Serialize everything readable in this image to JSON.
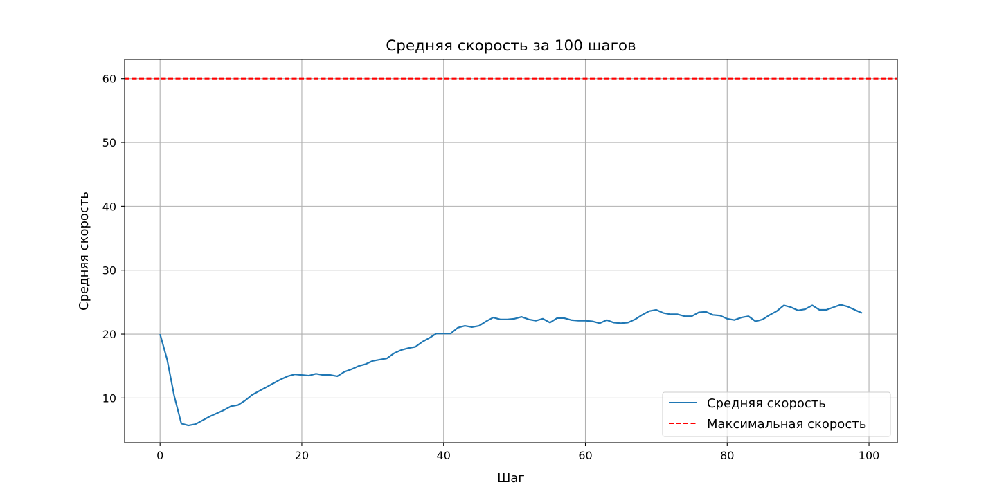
{
  "chart_data": {
    "type": "line",
    "title": "Средняя скорость за 100 шагов",
    "xlabel": "Шаг",
    "ylabel": "Средняя скорость",
    "xlim": [
      -5,
      104
    ],
    "ylim": [
      3,
      63
    ],
    "xticks": [
      0,
      20,
      40,
      60,
      80,
      100
    ],
    "yticks": [
      10,
      20,
      30,
      40,
      50,
      60
    ],
    "grid": true,
    "legend_position": "lower-right",
    "series": [
      {
        "name": "Средняя скорость",
        "color": "#1f77b4",
        "style": "solid",
        "x": [
          0,
          1,
          2,
          3,
          4,
          5,
          6,
          7,
          8,
          9,
          10,
          11,
          12,
          13,
          14,
          15,
          16,
          17,
          18,
          19,
          20,
          21,
          22,
          23,
          24,
          25,
          26,
          27,
          28,
          29,
          30,
          31,
          32,
          33,
          34,
          35,
          36,
          37,
          38,
          39,
          40,
          41,
          42,
          43,
          44,
          45,
          46,
          47,
          48,
          49,
          50,
          51,
          52,
          53,
          54,
          55,
          56,
          57,
          58,
          59,
          60,
          61,
          62,
          63,
          64,
          65,
          66,
          67,
          68,
          69,
          70,
          71,
          72,
          73,
          74,
          75,
          76,
          77,
          78,
          79,
          80,
          81,
          82,
          83,
          84,
          85,
          86,
          87,
          88,
          89,
          90,
          91,
          92,
          93,
          94,
          95,
          96,
          97,
          98,
          99
        ],
        "values": [
          20.0,
          16.0,
          10.3,
          6.0,
          5.7,
          5.9,
          6.5,
          7.1,
          7.6,
          8.1,
          8.7,
          8.9,
          9.6,
          10.5,
          11.1,
          11.7,
          12.3,
          12.9,
          13.4,
          13.7,
          13.6,
          13.5,
          13.8,
          13.6,
          13.6,
          13.4,
          14.1,
          14.5,
          15.0,
          15.3,
          15.8,
          16.0,
          16.2,
          17.0,
          17.5,
          17.8,
          18.0,
          18.8,
          19.4,
          20.1,
          20.1,
          20.1,
          21.0,
          21.3,
          21.1,
          21.3,
          22.0,
          22.6,
          22.3,
          22.3,
          22.4,
          22.7,
          22.3,
          22.1,
          22.4,
          21.8,
          22.5,
          22.5,
          22.2,
          22.1,
          22.1,
          22.0,
          21.7,
          22.2,
          21.8,
          21.7,
          21.8,
          22.3,
          23.0,
          23.6,
          23.8,
          23.3,
          23.1,
          23.1,
          22.8,
          22.8,
          23.4,
          23.5,
          23.0,
          22.9,
          22.4,
          22.2,
          22.6,
          22.8,
          22.0,
          22.3,
          23.0,
          23.6,
          24.5,
          24.2,
          23.7,
          23.9,
          24.5,
          23.8,
          23.8,
          24.2,
          24.6,
          24.3,
          23.8,
          23.3
        ]
      },
      {
        "name": "Максимальная скорость",
        "color": "#ff0000",
        "style": "dashed",
        "hline": 60
      }
    ]
  }
}
